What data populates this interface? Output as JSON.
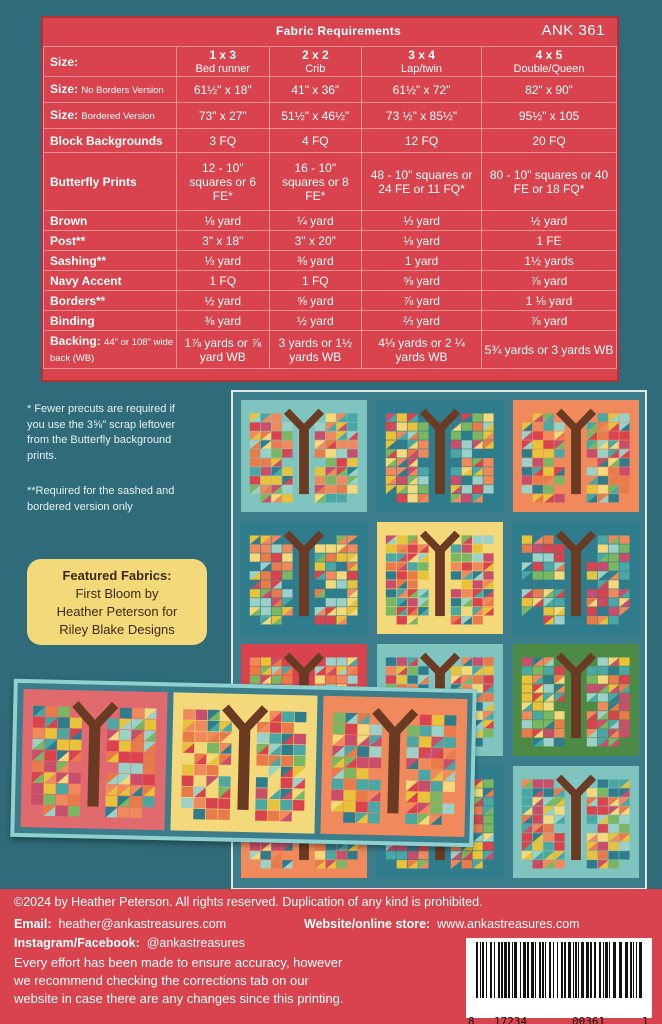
{
  "table": {
    "title": "Fabric Requirements",
    "code": "ANK 361",
    "sizes": [
      {
        "name": "1 x 3",
        "sub": "Bed runner"
      },
      {
        "name": "2 x 2",
        "sub": "Crib"
      },
      {
        "name": "3 x 4",
        "sub": "Lap/twin"
      },
      {
        "name": "4 x 5",
        "sub": "Double/Queen"
      }
    ],
    "rows": [
      {
        "label": "Size:",
        "label_sub": "No Borders Version",
        "values": [
          "61½\" x 18\"",
          "41\" x 36\"",
          "61½\" x 72\"",
          "82\" x 90\""
        ]
      },
      {
        "label": "Size:",
        "label_sub": "Bordered Version",
        "values": [
          "73\" x 27\"",
          "51½\" x 46½\"",
          "73 ½\" x 85½\"",
          "95½\" x 105"
        ]
      },
      {
        "label": "Block Backgrounds",
        "label_sub": "",
        "values": [
          "3 FQ",
          "4 FQ",
          "12 FQ",
          "20 FQ"
        ]
      },
      {
        "label": "Butterfly Prints",
        "label_sub": "",
        "values": [
          "12 - 10\" squares or 6 FE*",
          "16 - 10\" squares or 8 FE*",
          "48 - 10\" squares or 24 FE or 11 FQ*",
          "80 - 10\" squares or 40 FE or 18 FQ*"
        ]
      },
      {
        "label": "Brown",
        "label_sub": "",
        "values": [
          "⅛ yard",
          "¼ yard",
          "⅓ yard",
          "½ yard"
        ]
      },
      {
        "label": "Post**",
        "label_sub": "",
        "values": [
          "3\" x 18\"",
          "3\" x 20\"",
          "⅛ yard",
          "1 FE"
        ]
      },
      {
        "label": "Sashing**",
        "label_sub": "",
        "values": [
          "⅓ yard",
          "⅜ yard",
          "1 yard",
          "1½ yards"
        ]
      },
      {
        "label": "Navy Accent",
        "label_sub": "",
        "values": [
          "1 FQ",
          "1 FQ",
          "⅝ yard",
          "⅞ yard"
        ]
      },
      {
        "label": "Borders**",
        "label_sub": "",
        "values": [
          "½ yard",
          "⅝ yard",
          "⅞ yard",
          "1 ⅛ yard"
        ]
      },
      {
        "label": "Binding",
        "label_sub": "",
        "values": [
          "⅜ yard",
          "½ yard",
          "⅔ yard",
          "⅞ yard"
        ]
      },
      {
        "label": "Backing:",
        "label_sub": "44\" or 108\" wide back (WB)",
        "values": [
          "1⅞ yards or ⅞ yard WB",
          "3 yards or 1½ yards WB",
          "4⅓ yards or 2 ¼ yards WB",
          "5¾ yards or 3 yards WB"
        ]
      }
    ],
    "size_header_label": "Size:"
  },
  "notes": {
    "fewer": [
      "* Fewer precuts are required if",
      "you use the 3⅝\" scrap leftover",
      "from the Butterfly background",
      "prints."
    ],
    "required": [
      "**Required for the sashed and",
      "bordered version only"
    ]
  },
  "featured": {
    "heading": "Featured Fabrics:",
    "lines": [
      "First Bloom by",
      "Heather Peterson for",
      "Riley Blake Designs"
    ]
  },
  "footer": {
    "copyright": "©2024 by Heather Peterson.  All rights reserved.  Duplication of any kind is prohibited.",
    "email_label": "Email:",
    "email": "heather@ankastreasures.com",
    "website_label": "Website/online store:",
    "website": "www.ankastreasures.com",
    "social_label": "Instagram/Facebook:",
    "social": "@ankastreasures",
    "disclaimer": [
      "Every effort has been made to ensure accuracy, however",
      "we recommend checking the corrections tab on our",
      "website in case there are any changes since this printing."
    ]
  },
  "barcode": {
    "digits": [
      "8",
      "17234",
      "00361",
      "1"
    ]
  },
  "colors": {
    "red": "#d9434d",
    "teal": "#2f6b78",
    "yellow": "#f3d97a"
  }
}
